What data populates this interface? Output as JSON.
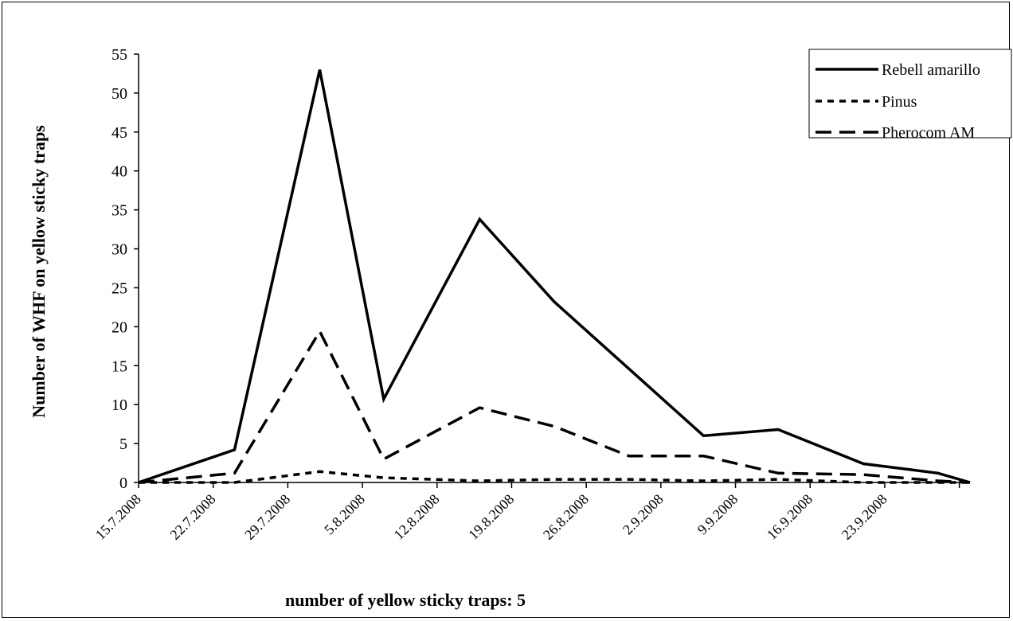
{
  "chart_data": {
    "type": "line",
    "title": "",
    "xlabel": "number of yellow sticky traps: 5",
    "ylabel": "Number of  WHF  on yellow sticky traps",
    "ylim": [
      0,
      55
    ],
    "yticks": [
      0,
      5,
      10,
      15,
      20,
      25,
      30,
      35,
      40,
      45,
      50,
      55
    ],
    "xlim": [
      "15.7.2008",
      "1.10.2008"
    ],
    "tick_labels": [
      "15.7.2008",
      "22.7.2008",
      "29.7.2008",
      "5.8.2008",
      "12.8.2008",
      "19.8.2008",
      "26.8.2008",
      "2.9.2008",
      "9.9.2008",
      "16.9.2008",
      "23.9.2008"
    ],
    "grid": false,
    "legend_position": "top-right",
    "series": [
      {
        "name": "Rebell amarillo",
        "style": "solid",
        "color": "#000000",
        "points": [
          [
            "15.7.2008",
            0
          ],
          [
            "24.7.2008",
            4.2
          ],
          [
            "1.8.2008",
            53
          ],
          [
            "7.8.2008",
            10.7
          ],
          [
            "16.8.2008",
            33.8
          ],
          [
            "23.8.2008",
            23.2
          ],
          [
            "30.8.2008",
            14.6
          ],
          [
            "6.9.2008",
            6
          ],
          [
            "13.9.2008",
            6.8
          ],
          [
            "21.9.2008",
            2.4
          ],
          [
            "28.9.2008",
            1.2
          ],
          [
            "1.10.2008",
            0
          ]
        ]
      },
      {
        "name": "Pinus",
        "style": "dotted",
        "color": "#000000",
        "points": [
          [
            "15.7.2008",
            0
          ],
          [
            "24.7.2008",
            0
          ],
          [
            "1.8.2008",
            1.4
          ],
          [
            "7.8.2008",
            0.6
          ],
          [
            "16.8.2008",
            0.2
          ],
          [
            "23.8.2008",
            0.4
          ],
          [
            "30.8.2008",
            0.4
          ],
          [
            "6.9.2008",
            0.2
          ],
          [
            "13.9.2008",
            0.4
          ],
          [
            "21.9.2008",
            0
          ],
          [
            "28.9.2008",
            0
          ],
          [
            "1.10.2008",
            0
          ]
        ]
      },
      {
        "name": "Pherocom AM",
        "style": "dashed",
        "color": "#000000",
        "points": [
          [
            "15.7.2008",
            0
          ],
          [
            "24.7.2008",
            1.2
          ],
          [
            "1.8.2008",
            19.4
          ],
          [
            "7.8.2008",
            3
          ],
          [
            "16.8.2008",
            9.6
          ],
          [
            "23.8.2008",
            7.2
          ],
          [
            "30.8.2008",
            3.4
          ],
          [
            "6.9.2008",
            3.4
          ],
          [
            "13.9.2008",
            1.2
          ],
          [
            "21.9.2008",
            1
          ],
          [
            "28.9.2008",
            0.2
          ],
          [
            "1.10.2008",
            0
          ]
        ]
      }
    ]
  }
}
